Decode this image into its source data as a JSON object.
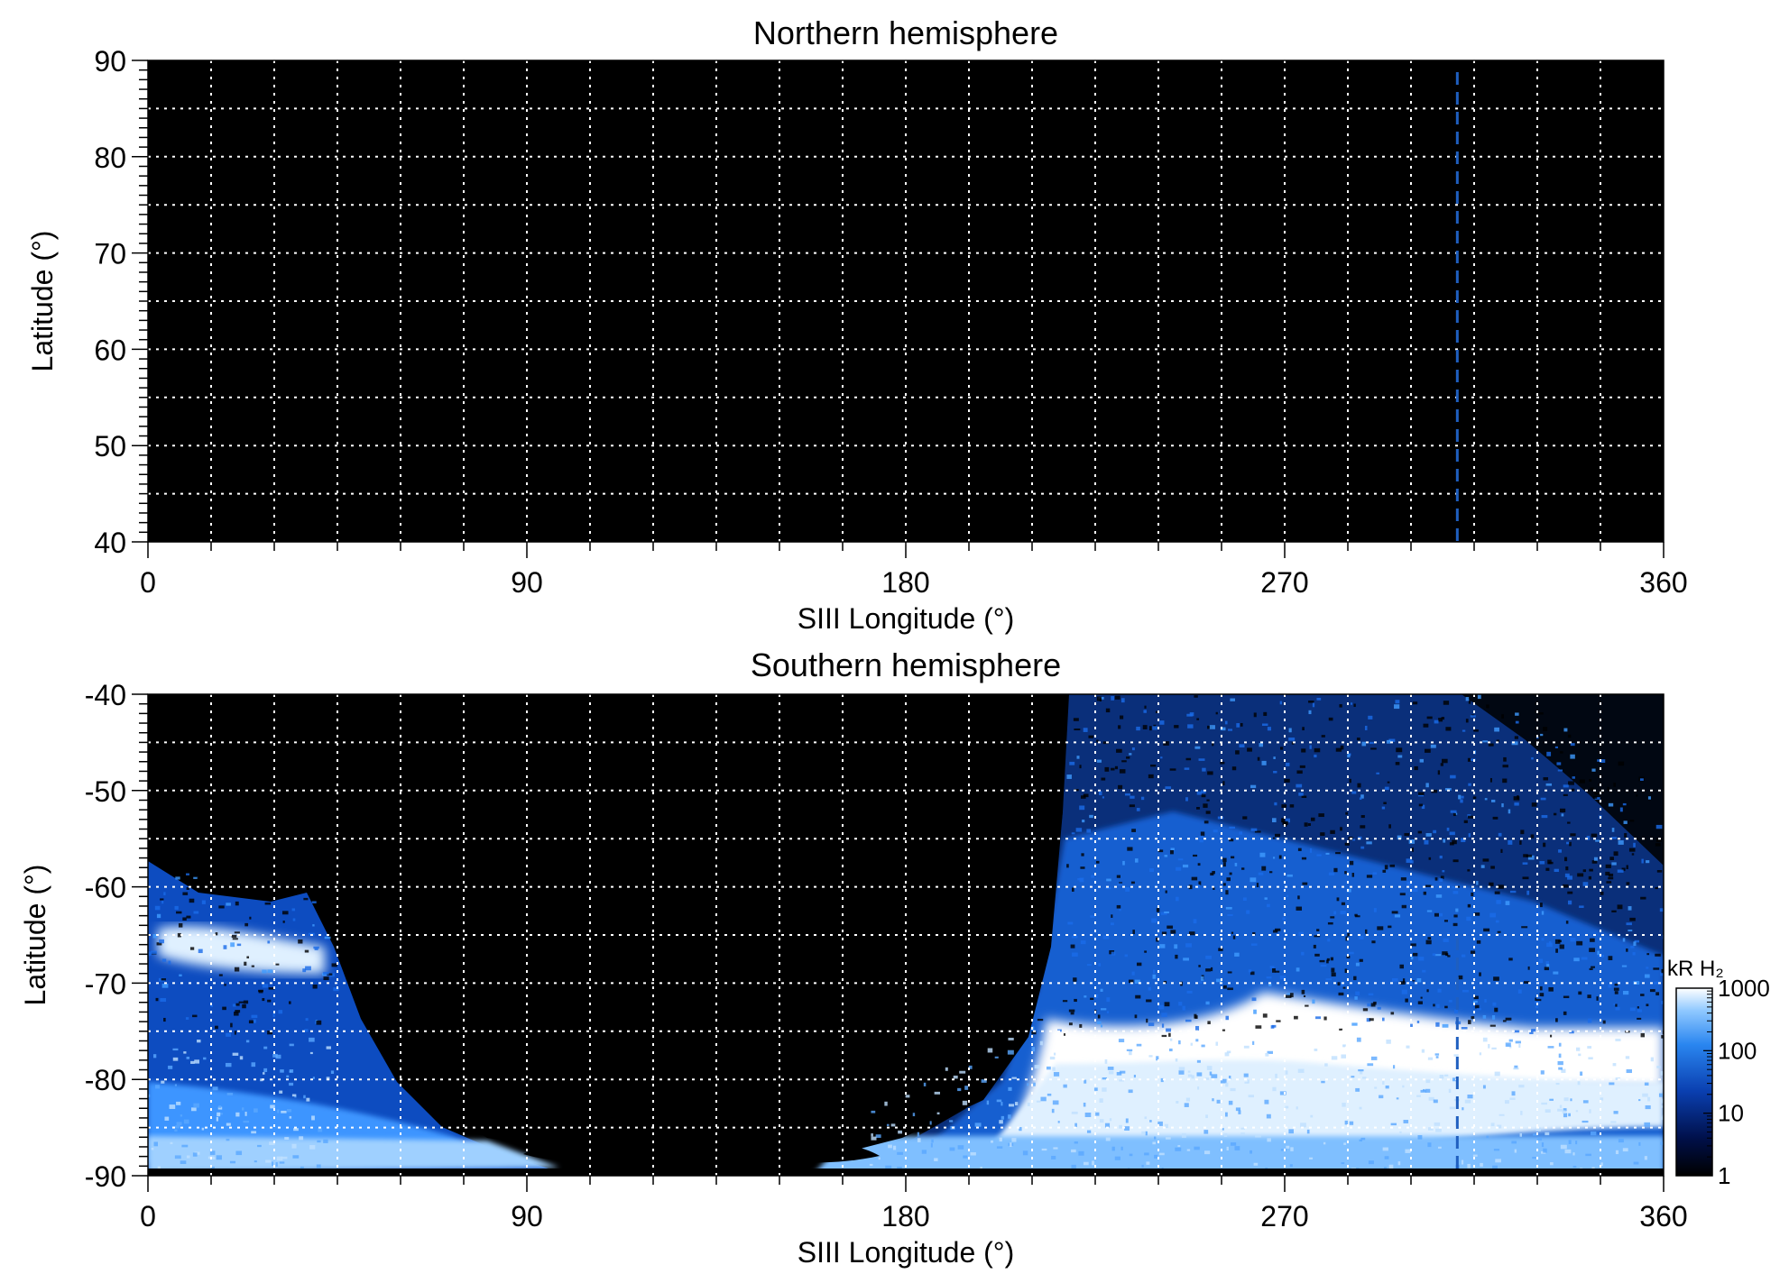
{
  "chart_data": [
    {
      "type": "heatmap",
      "title": "Northern hemisphere",
      "xlabel": "SIII Longitude (°)",
      "ylabel": "Latitude (°)",
      "xlim": [
        0,
        360
      ],
      "ylim": [
        40,
        90
      ],
      "xticks": [
        0,
        90,
        180,
        270,
        360
      ],
      "xtick_labels": [
        "0",
        "90",
        "180",
        "270",
        "360"
      ],
      "yticks": [
        40,
        50,
        60,
        70,
        80,
        90
      ],
      "ytick_labels": [
        "40",
        "50",
        "60",
        "70",
        "80",
        "90"
      ],
      "grid": true,
      "grid_x_step": 15,
      "grid_y_step": 5,
      "background_color": "#000000",
      "grid_color": "#ffffff",
      "marker_line": {
        "x": 311,
        "color": "#1f5fc0",
        "style": "dashed"
      },
      "emission": "none"
    },
    {
      "type": "heatmap",
      "title": "Southern hemisphere",
      "xlabel": "SIII Longitude (°)",
      "ylabel": "Latitude (°)",
      "xlim": [
        0,
        360
      ],
      "ylim": [
        -90,
        -40
      ],
      "xticks": [
        0,
        90,
        180,
        270,
        360
      ],
      "xtick_labels": [
        "0",
        "90",
        "180",
        "270",
        "360"
      ],
      "yticks": [
        -90,
        -80,
        -70,
        -60,
        -50,
        -40
      ],
      "ytick_labels": [
        "-90",
        "-80",
        "-70",
        "-60",
        "-50",
        "-40"
      ],
      "grid": true,
      "grid_x_step": 15,
      "grid_y_step": 5,
      "background_color": "#000000",
      "grid_color": "#ffffff",
      "marker_line": {
        "x": 311,
        "color": "#1f5fc0",
        "style": "dashed"
      },
      "colorbar": {
        "label": "kR H₂",
        "scale": "log",
        "ticks": [
          1,
          10,
          100,
          1000
        ],
        "tick_labels": [
          "1",
          "10",
          "100",
          "1000"
        ],
        "colors": [
          "#000000",
          "#00104a",
          "#0a3fb0",
          "#2a86f0",
          "#8fc8ff",
          "#ffffff"
        ]
      }
    }
  ]
}
